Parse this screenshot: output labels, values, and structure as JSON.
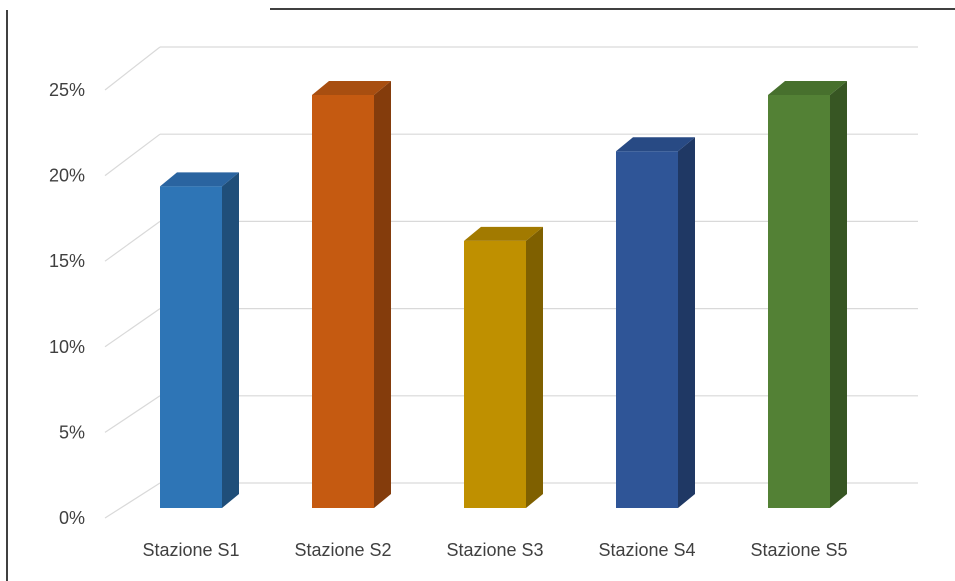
{
  "chart_data": {
    "type": "bar",
    "style": "3d-column",
    "title": "",
    "xlabel": "",
    "ylabel": "",
    "categories": [
      "Stazione S1",
      "Stazione S2",
      "Stazione S3",
      "Stazione S4",
      "Stazione S5"
    ],
    "values": [
      18.3,
      23.5,
      15.2,
      20.3,
      23.5
    ],
    "value_unit": "%",
    "ylim": [
      0,
      25
    ],
    "yticks": [
      0,
      5,
      10,
      15,
      20,
      25
    ],
    "ytick_labels": [
      "0%",
      "5%",
      "10%",
      "15%",
      "20%",
      "25%"
    ],
    "grid": true,
    "legend": "none",
    "colors": {
      "front": [
        "#2E75B6",
        "#C55A11",
        "#BF9000",
        "#2F5597",
        "#538135"
      ],
      "side": [
        "#1F4E79",
        "#843C0C",
        "#7F6000",
        "#1F3864",
        "#375623"
      ],
      "top": [
        "#2A64A0",
        "#A84E10",
        "#A27A00",
        "#284A84",
        "#47702D"
      ],
      "gridline": "#D9D9D9",
      "text": "#404040",
      "frame": "#000000"
    }
  }
}
